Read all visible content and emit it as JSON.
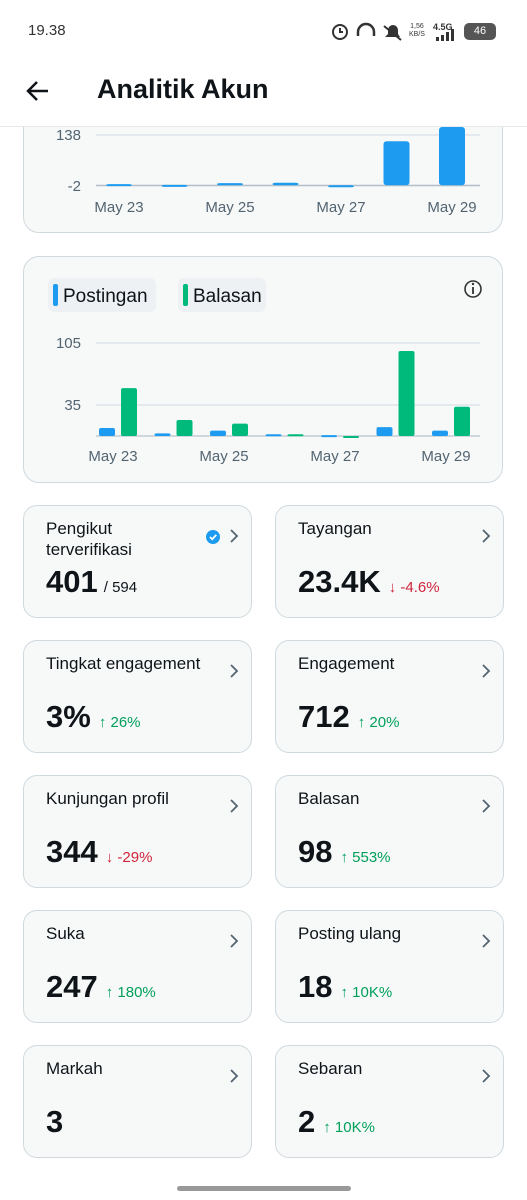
{
  "status_bar": {
    "time": "19.38",
    "net_speed": "1,56",
    "net_unit": "KB/S",
    "network": "4.5G",
    "battery": "46"
  },
  "header": {
    "title": "Analitik Akun"
  },
  "chart_data": [
    {
      "type": "bar",
      "categories": [
        "May 23",
        null,
        "May 25",
        null,
        "May 27",
        null,
        "May 29"
      ],
      "values": [
        3,
        1,
        6,
        7,
        -1,
        121,
        160
      ],
      "color": "#1d9bf0",
      "ylim": [
        -2,
        160
      ],
      "yticks": [
        -2,
        138
      ],
      "grid": true
    },
    {
      "type": "grouped_bar",
      "categories": [
        "May 23",
        null,
        "May 25",
        null,
        "May 27",
        null,
        "May 29"
      ],
      "series": [
        {
          "name": "Postingan",
          "color": "#1d9bf0",
          "values": [
            9,
            3,
            6,
            2,
            1,
            10,
            6
          ]
        },
        {
          "name": "Balasan",
          "color": "#00ba7c",
          "values": [
            54,
            18,
            14,
            2,
            0,
            96,
            33
          ]
        }
      ],
      "ylim": [
        0,
        105
      ],
      "yticks": [
        35,
        105
      ],
      "grid": true,
      "legend": "top-left"
    }
  ],
  "cards": [
    {
      "label": "Pengikut terverifikasi",
      "value": "401",
      "extra": "/ 594"
    },
    {
      "label": "Tayangan",
      "value": "23.4K",
      "change": "-4.6%",
      "direction": "down"
    },
    {
      "label": "Tingkat engagement",
      "value": "3%",
      "change": "26%",
      "direction": "up"
    },
    {
      "label": "Engagement",
      "value": "712",
      "change": "20%",
      "direction": "up"
    },
    {
      "label": "Kunjungan profil",
      "value": "344",
      "change": "-29%",
      "direction": "down"
    },
    {
      "label": "Balasan",
      "value": "98",
      "change": "553%",
      "direction": "up"
    },
    {
      "label": "Suka",
      "value": "247",
      "change": "180%",
      "direction": "up"
    },
    {
      "label": "Posting ulang",
      "value": "18",
      "change": "10K%",
      "direction": "up"
    },
    {
      "label": "Markah",
      "value": "3"
    },
    {
      "label": "Sebaran",
      "value": "2",
      "change": "10K%",
      "direction": "up"
    }
  ]
}
